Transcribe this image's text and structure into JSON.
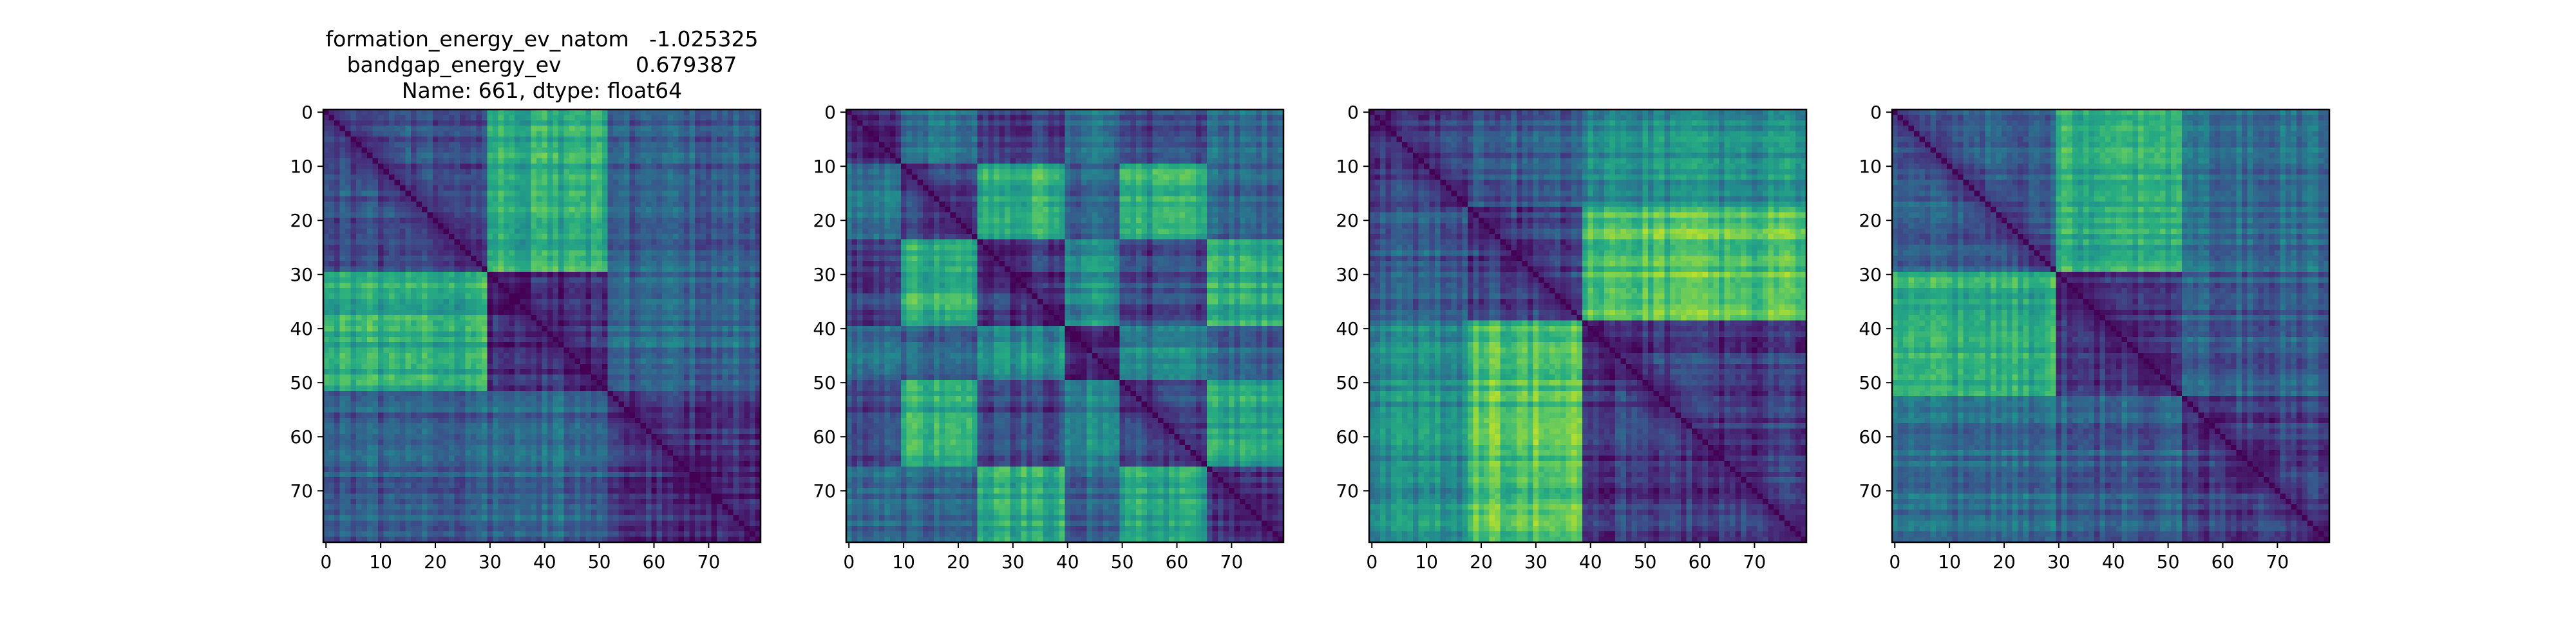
{
  "chart_data": [
    {
      "type": "heatmap",
      "title_lines": [
        "formation_energy_ev_natom   -1.025325",
        "bandgap_energy_ev           0.679387",
        "Name: 661, dtype: float64"
      ],
      "xlabel": "",
      "ylabel": "",
      "size": 80,
      "xlim": [
        0,
        79
      ],
      "ylim": [
        79,
        0
      ],
      "xticks": [
        0,
        10,
        20,
        30,
        40,
        50,
        60,
        70
      ],
      "yticks": [
        0,
        10,
        20,
        30,
        40,
        50,
        60,
        70
      ],
      "colormap": "viridis",
      "value_range": [
        0,
        1
      ],
      "block_boundaries": [
        0,
        30,
        52,
        80
      ],
      "block_means": [
        [
          0.26,
          0.63,
          0.3
        ],
        [
          0.63,
          0.13,
          0.33
        ],
        [
          0.3,
          0.33,
          0.14
        ]
      ],
      "diagonal_value": 0.0,
      "peak_value": 1.0
    },
    {
      "type": "heatmap",
      "title_lines": [],
      "xlabel": "",
      "ylabel": "",
      "size": 80,
      "xlim": [
        0,
        79
      ],
      "ylim": [
        79,
        0
      ],
      "xticks": [
        0,
        10,
        20,
        30,
        40,
        50,
        60,
        70
      ],
      "yticks": [
        0,
        10,
        20,
        30,
        40,
        50,
        60,
        70
      ],
      "colormap": "viridis",
      "value_range": [
        0,
        1
      ],
      "block_boundaries": [
        0,
        10,
        24,
        40,
        50,
        66,
        80
      ],
      "block_means": [
        [
          0.14,
          0.38,
          0.2,
          0.38,
          0.22,
          0.34
        ],
        [
          0.38,
          0.18,
          0.62,
          0.3,
          0.62,
          0.3
        ],
        [
          0.2,
          0.62,
          0.16,
          0.48,
          0.2,
          0.6
        ],
        [
          0.38,
          0.3,
          0.48,
          0.14,
          0.45,
          0.3
        ],
        [
          0.22,
          0.62,
          0.2,
          0.45,
          0.2,
          0.58
        ],
        [
          0.34,
          0.3,
          0.6,
          0.3,
          0.58,
          0.16
        ]
      ],
      "diagonal_value": 0.0,
      "peak_value": 1.0
    },
    {
      "type": "heatmap",
      "title_lines": [],
      "xlabel": "",
      "ylabel": "",
      "size": 80,
      "xlim": [
        0,
        79
      ],
      "ylim": [
        79,
        0
      ],
      "xticks": [
        0,
        10,
        20,
        30,
        40,
        50,
        60,
        70
      ],
      "yticks": [
        0,
        10,
        20,
        30,
        40,
        50,
        60,
        70
      ],
      "colormap": "viridis",
      "value_range": [
        0,
        1
      ],
      "block_boundaries": [
        0,
        18,
        39,
        80
      ],
      "block_means": [
        [
          0.22,
          0.3,
          0.5
        ],
        [
          0.3,
          0.2,
          0.72
        ],
        [
          0.5,
          0.72,
          0.17
        ]
      ],
      "diagonal_value": 0.0,
      "peak_value": 1.0
    },
    {
      "type": "heatmap",
      "title_lines": [],
      "xlabel": "",
      "ylabel": "",
      "size": 80,
      "xlim": [
        0,
        79
      ],
      "ylim": [
        79,
        0
      ],
      "xticks": [
        0,
        10,
        20,
        30,
        40,
        50,
        60,
        70
      ],
      "yticks": [
        0,
        10,
        20,
        30,
        40,
        50,
        60,
        70
      ],
      "colormap": "viridis",
      "value_range": [
        0,
        1
      ],
      "block_boundaries": [
        0,
        30,
        53,
        80
      ],
      "block_means": [
        [
          0.27,
          0.62,
          0.35
        ],
        [
          0.62,
          0.16,
          0.3
        ],
        [
          0.35,
          0.3,
          0.2
        ]
      ],
      "diagonal_value": 0.0,
      "peak_value": 1.0
    }
  ]
}
